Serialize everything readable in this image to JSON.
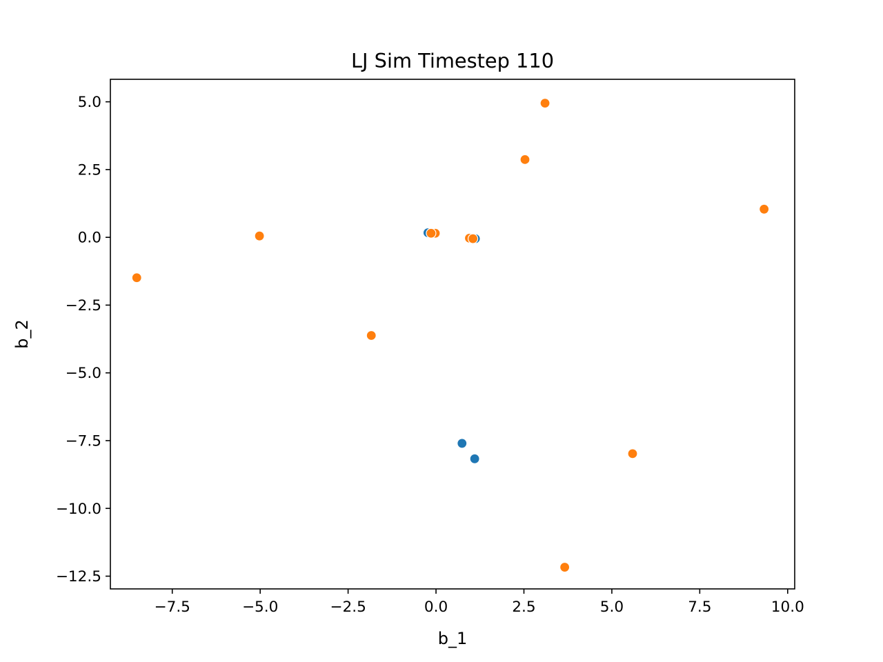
{
  "chart_data": {
    "type": "scatter",
    "title": "LJ Sim Timestep 110",
    "xlabel": "b_1",
    "ylabel": "b_2",
    "xlim": [
      -9.26,
      10.2
    ],
    "ylim": [
      -12.97,
      5.83
    ],
    "grid": false,
    "legend": "none",
    "xticks": [
      -7.5,
      -5.0,
      -2.5,
      0.0,
      2.5,
      5.0,
      7.5,
      10.0
    ],
    "xtick_labels": [
      "−7.5",
      "−5.0",
      "−2.5",
      "0.0",
      "2.5",
      "5.0",
      "7.5",
      "10.0"
    ],
    "yticks": [
      5.0,
      2.5,
      0.0,
      -2.5,
      -5.0,
      -7.5,
      -10.0,
      -12.5
    ],
    "ytick_labels": [
      "5.0",
      "2.5",
      "0.0",
      "−2.5",
      "−5.0",
      "−7.5",
      "−10.0",
      "−12.5"
    ],
    "series": [
      {
        "color": "#1f77b4",
        "x": [
          -0.23,
          1.12,
          0.74,
          1.1
        ],
        "y": [
          0.17,
          -0.05,
          -7.6,
          -8.17
        ]
      },
      {
        "color": "#ff7f0e",
        "x": [
          3.1,
          2.53,
          9.33,
          -0.02,
          -0.14,
          0.95,
          1.05,
          -5.02,
          -8.51,
          -1.84,
          5.59,
          3.66
        ],
        "y": [
          4.95,
          2.87,
          1.04,
          0.15,
          0.15,
          -0.03,
          -0.05,
          0.05,
          -1.49,
          -3.62,
          -7.98,
          -12.17
        ]
      }
    ]
  }
}
